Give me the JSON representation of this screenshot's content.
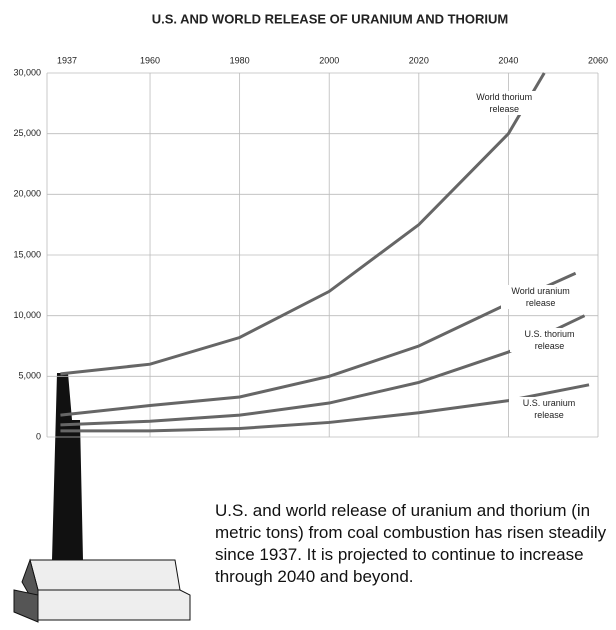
{
  "chart_data": {
    "type": "line",
    "title": "U.S. AND WORLD RELEASE OF URANIUM AND THORIUM",
    "xlim": [
      1937,
      2060
    ],
    "xticks": [
      1937,
      1960,
      1980,
      2000,
      2020,
      2040,
      2060
    ],
    "ylim": [
      0,
      30000
    ],
    "yticks": [
      0,
      {
        "value": 5000,
        "label": "5,000"
      },
      {
        "value": 10000,
        "label": "10,000"
      },
      {
        "value": 15000,
        "label": "15,000"
      },
      {
        "value": 20000,
        "label": "20,000"
      },
      {
        "value": 25000,
        "label": "25,000"
      },
      {
        "value": 30000,
        "label": "30,000"
      }
    ],
    "grid": true,
    "series": [
      {
        "name": "World thorium release",
        "color": "#666666",
        "x": [
          1940,
          1960,
          1980,
          2000,
          2020,
          2040,
          2048
        ],
        "values": [
          5200,
          6000,
          8200,
          12000,
          17500,
          25000,
          30000
        ]
      },
      {
        "name": "World uranium release",
        "color": "#666666",
        "x": [
          1940,
          1960,
          1980,
          2000,
          2020,
          2040,
          2055
        ],
        "values": [
          1800,
          2600,
          3300,
          5000,
          7500,
          11000,
          13500
        ]
      },
      {
        "name": "U.S. thorium release",
        "color": "#666666",
        "x": [
          1940,
          1960,
          1980,
          2000,
          2020,
          2040,
          2057
        ],
        "values": [
          1000,
          1300,
          1800,
          2800,
          4500,
          7000,
          10000
        ]
      },
      {
        "name": "U.S. uranium release",
        "color": "#666666",
        "x": [
          1940,
          1960,
          1980,
          2000,
          2020,
          2040,
          2058
        ],
        "values": [
          500,
          500,
          700,
          1200,
          2000,
          3000,
          4300
        ]
      }
    ],
    "caption": "U.S. and world release of uranium and thorium (in metric tons) from coal combustion has risen steadily since 1937. It is projected to continue to increase through 2040 and beyond."
  }
}
